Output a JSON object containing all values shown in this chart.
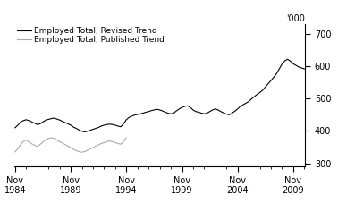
{
  "ylabel_top": "'000",
  "legend_revised": "Employed Total, Revised Trend",
  "legend_published": "Employed Total, Published Trend",
  "color_revised": "#000000",
  "color_published": "#aaaaaa",
  "yticks": [
    300,
    400,
    500,
    600,
    700
  ],
  "xtick_years": [
    1984,
    1989,
    1994,
    1999,
    2004,
    2009
  ],
  "xlim_left": 1984.75,
  "xlim_right": 2010.92,
  "ylim": [
    290,
    730
  ],
  "revised_x": [
    1984.83,
    1985.08,
    1985.33,
    1985.58,
    1985.83,
    1986.08,
    1986.33,
    1986.58,
    1986.83,
    1987.08,
    1987.33,
    1987.58,
    1987.83,
    1988.08,
    1988.33,
    1988.58,
    1988.83,
    1989.08,
    1989.33,
    1989.58,
    1989.83,
    1990.08,
    1990.33,
    1990.58,
    1990.83,
    1991.08,
    1991.33,
    1991.58,
    1991.83,
    1992.08,
    1992.33,
    1992.58,
    1992.83,
    1993.08,
    1993.33,
    1993.58,
    1993.83,
    1994.08,
    1994.33,
    1994.58,
    1994.83,
    1995.08,
    1995.33,
    1995.58,
    1995.83,
    1996.08,
    1996.33,
    1996.58,
    1996.83,
    1997.08,
    1997.33,
    1997.58,
    1997.83,
    1998.08,
    1998.33,
    1998.58,
    1998.83,
    1999.08,
    1999.33,
    1999.58,
    1999.83,
    2000.08,
    2000.33,
    2000.58,
    2000.83,
    2001.08,
    2001.33,
    2001.58,
    2001.83,
    2002.08,
    2002.33,
    2002.58,
    2002.83,
    2003.08,
    2003.33,
    2003.58,
    2003.83,
    2004.08,
    2004.33,
    2004.58,
    2004.83,
    2005.08,
    2005.33,
    2005.58,
    2005.83,
    2006.08,
    2006.33,
    2006.58,
    2006.83,
    2007.08,
    2007.33,
    2007.58,
    2007.83,
    2008.08,
    2008.33,
    2008.58,
    2008.83,
    2009.08,
    2009.33,
    2009.58,
    2009.83,
    2010.08,
    2010.33,
    2010.58,
    2010.83
  ],
  "revised_y": [
    410,
    418,
    428,
    432,
    435,
    432,
    428,
    424,
    420,
    422,
    428,
    433,
    436,
    438,
    440,
    437,
    434,
    430,
    426,
    422,
    418,
    412,
    408,
    403,
    399,
    397,
    399,
    402,
    405,
    408,
    411,
    415,
    418,
    420,
    421,
    420,
    418,
    415,
    413,
    422,
    435,
    442,
    446,
    449,
    451,
    453,
    455,
    458,
    460,
    463,
    465,
    467,
    465,
    462,
    458,
    455,
    453,
    455,
    462,
    468,
    473,
    476,
    478,
    473,
    465,
    460,
    458,
    455,
    453,
    455,
    460,
    465,
    468,
    465,
    460,
    456,
    452,
    450,
    455,
    461,
    468,
    476,
    481,
    486,
    491,
    499,
    506,
    513,
    519,
    526,
    536,
    546,
    556,
    566,
    577,
    592,
    607,
    617,
    622,
    616,
    608,
    603,
    598,
    595,
    592
  ],
  "published_x": [
    1984.83,
    1985.08,
    1985.33,
    1985.58,
    1985.83,
    1986.08,
    1986.33,
    1986.58,
    1986.83,
    1987.08,
    1987.33,
    1987.58,
    1987.83,
    1988.08,
    1988.33,
    1988.58,
    1988.83,
    1989.08,
    1989.33,
    1989.58,
    1989.83,
    1990.08,
    1990.33,
    1990.58,
    1990.83,
    1991.08,
    1991.33,
    1991.58,
    1991.83,
    1992.08,
    1992.33,
    1992.58,
    1992.83,
    1993.08,
    1993.33,
    1993.58,
    1993.83,
    1994.08,
    1994.33,
    1994.58,
    1994.83
  ],
  "published_y": [
    335,
    345,
    358,
    368,
    372,
    366,
    360,
    356,
    352,
    358,
    366,
    373,
    377,
    379,
    377,
    372,
    367,
    363,
    358,
    353,
    348,
    343,
    339,
    336,
    334,
    336,
    340,
    344,
    348,
    353,
    357,
    361,
    364,
    367,
    369,
    367,
    364,
    361,
    359,
    367,
    379
  ]
}
